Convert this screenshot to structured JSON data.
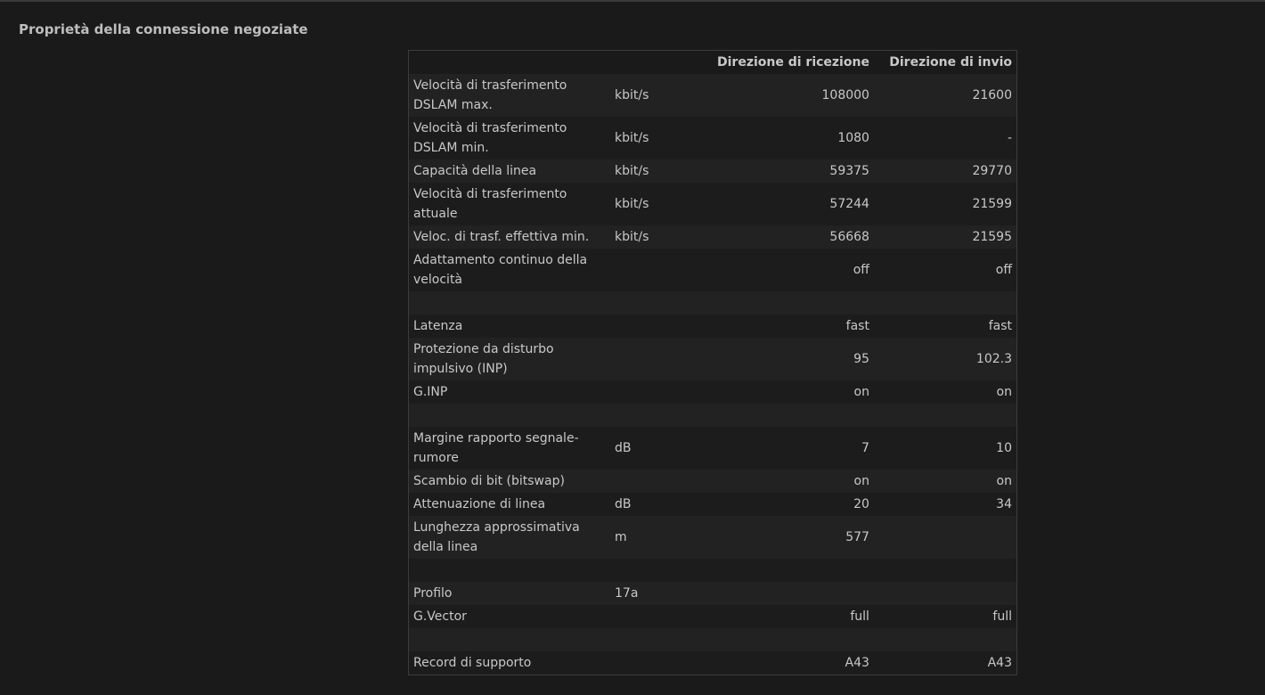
{
  "title": "Proprietà della connessione negoziate",
  "headers": {
    "label": "",
    "unit": "",
    "rx": "Direzione di ricezione",
    "tx": "Direzione di invio"
  },
  "rows": [
    {
      "label": "Velocità di trasferimento DSLAM max.",
      "unit": "kbit/s",
      "rx": "108000",
      "tx": "21600",
      "tall": true
    },
    {
      "label": "Velocità di trasferimento DSLAM min.",
      "unit": "kbit/s",
      "rx": "1080",
      "tx": "-",
      "tall": true
    },
    {
      "label": "Capacità della linea",
      "unit": "kbit/s",
      "rx": "59375",
      "tx": "29770"
    },
    {
      "label": "Velocità di trasferimento attuale",
      "unit": "kbit/s",
      "rx": "57244",
      "tx": "21599",
      "tall": true
    },
    {
      "label": "Veloc. di trasf. effettiva min.",
      "unit": "kbit/s",
      "rx": "56668",
      "tx": "21595"
    },
    {
      "label": "Adattamento continuo della velocità",
      "unit": "",
      "rx": "off",
      "tx": "off",
      "tall": true
    },
    {
      "label": "",
      "unit": "",
      "rx": "",
      "tx": ""
    },
    {
      "label": "Latenza",
      "unit": "",
      "rx": "fast",
      "tx": "fast"
    },
    {
      "label": "Protezione da disturbo impulsivo (INP)",
      "unit": "",
      "rx": "95",
      "tx": "102.3",
      "tall": true
    },
    {
      "label": "G.INP",
      "unit": "",
      "rx": "on",
      "tx": "on"
    },
    {
      "label": "",
      "unit": "",
      "rx": "",
      "tx": ""
    },
    {
      "label": "Margine rapporto segnale-rumore",
      "unit": "dB",
      "rx": "7",
      "tx": "10",
      "tall": true
    },
    {
      "label": "Scambio di bit (bitswap)",
      "unit": "",
      "rx": "on",
      "tx": "on"
    },
    {
      "label": "Attenuazione di linea",
      "unit": "dB",
      "rx": "20",
      "tx": "34"
    },
    {
      "label": "Lunghezza approssimativa della linea",
      "unit": "m",
      "rx": "577",
      "tx": "",
      "tall": true
    },
    {
      "label": "",
      "unit": "",
      "rx": "",
      "tx": ""
    },
    {
      "label": "Profilo",
      "unit": "17a",
      "rx": "",
      "tx": ""
    },
    {
      "label": "G.Vector",
      "unit": "",
      "rx": "full",
      "tx": "full"
    },
    {
      "label": "",
      "unit": "",
      "rx": "",
      "tx": ""
    },
    {
      "label": "Record di supporto",
      "unit": "",
      "rx": "A43",
      "tx": "A43"
    }
  ]
}
